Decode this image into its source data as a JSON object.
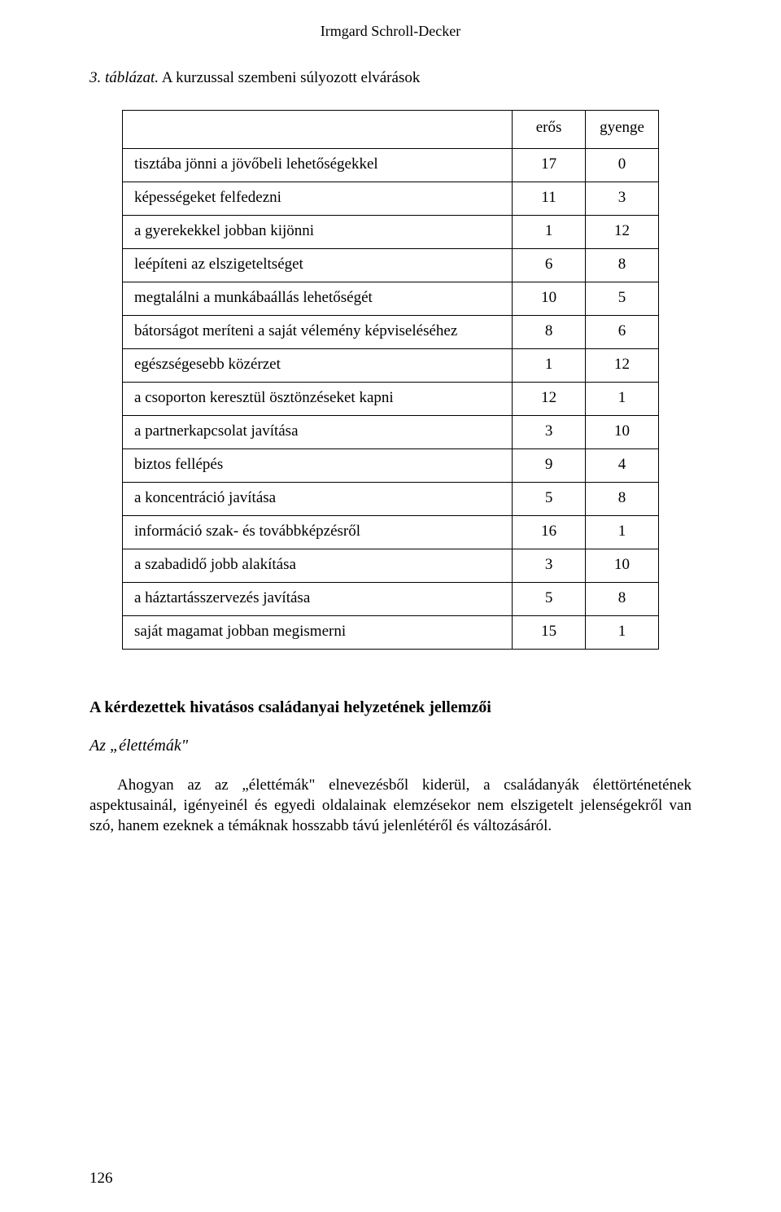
{
  "running_head": "Irmgard Schroll-Decker",
  "caption": {
    "label": "3. táblázat.",
    "text": "A kurzussal szembeni súlyozott elvárások"
  },
  "table": {
    "columns": [
      "",
      "erős",
      "gyenge"
    ],
    "rows": [
      {
        "label": "tisztába jönni a jövőbeli lehetőségekkel",
        "eros": "17",
        "gyenge": "0"
      },
      {
        "label": "képességeket felfedezni",
        "eros": "11",
        "gyenge": "3"
      },
      {
        "label": "a gyerekekkel jobban kijönni",
        "eros": "1",
        "gyenge": "12"
      },
      {
        "label": "leépíteni az elszigeteltséget",
        "eros": "6",
        "gyenge": "8"
      },
      {
        "label": "megtalálni a munkábaállás lehetőségét",
        "eros": "10",
        "gyenge": "5"
      },
      {
        "label": "bátorságot meríteni a saját vélemény képviseléséhez",
        "eros": "8",
        "gyenge": "6"
      },
      {
        "label": "egészségesebb közérzet",
        "eros": "1",
        "gyenge": "12"
      },
      {
        "label": "a csoporton keresztül ösztönzéseket kapni",
        "eros": "12",
        "gyenge": "1"
      },
      {
        "label": "a partnerkapcsolat javítása",
        "eros": "3",
        "gyenge": "10"
      },
      {
        "label": "biztos fellépés",
        "eros": "9",
        "gyenge": "4"
      },
      {
        "label": "a koncentráció javítása",
        "eros": "5",
        "gyenge": "8"
      },
      {
        "label": "információ szak- és továbbképzésről",
        "eros": "16",
        "gyenge": "1"
      },
      {
        "label": "a szabadidő jobb alakítása",
        "eros": "3",
        "gyenge": "10"
      },
      {
        "label": "a háztartásszervezés javítása",
        "eros": "5",
        "gyenge": "8"
      },
      {
        "label": "saját magamat jobban megismerni",
        "eros": "15",
        "gyenge": "1"
      }
    ],
    "border_color": "#000000",
    "cell_fontsize": 19,
    "header_fontsize": 19
  },
  "section_title": "A kérdezettek hivatásos családanyai helyzetének jellemzői",
  "subsection_title": "Az „élettémák\"",
  "body_text": "Ahogyan az az „élettémák\" elnevezésből kiderül, a családanyák élettörténetének aspektusainál, igényeinél és egyedi oldalainak elemzésekor nem elszigetelt jelenségekről van szó, hanem ezeknek a témáknak hosszabb távú jelenlétéről és változásáról.",
  "page_number": "126"
}
